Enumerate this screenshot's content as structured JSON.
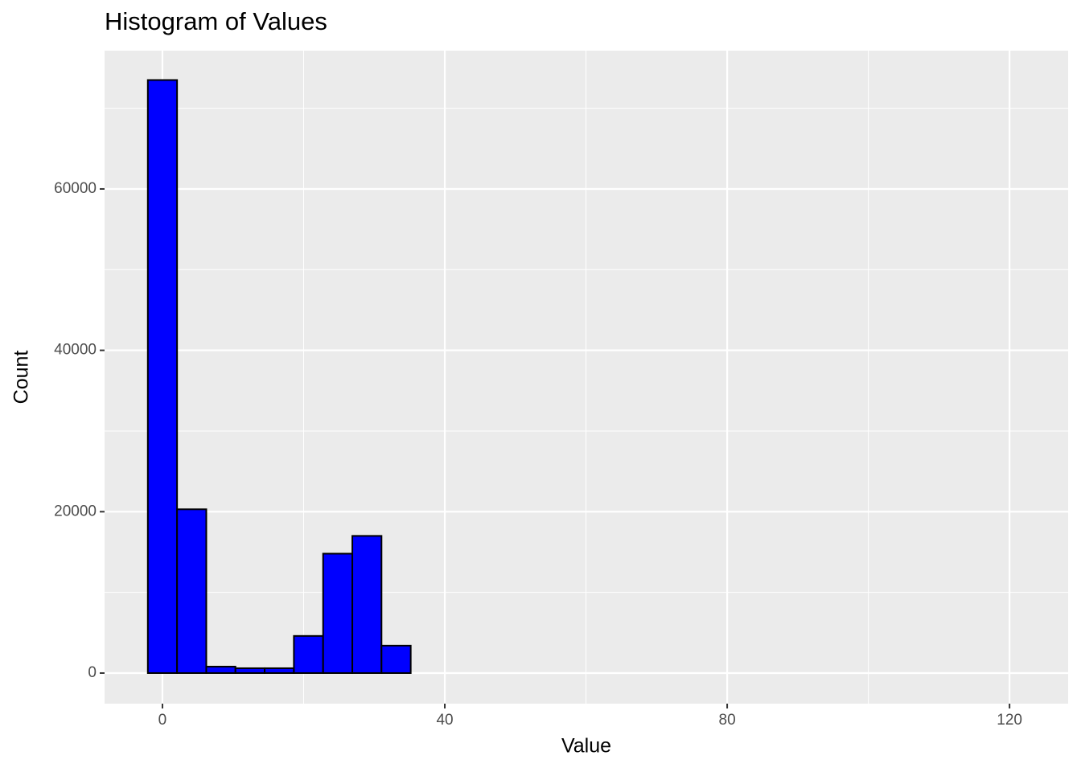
{
  "chart_data": {
    "type": "histogram",
    "title": "Histogram of Values",
    "x_label": "Value",
    "y_label": "Count",
    "bins": [
      -2.07,
      2.07,
      6.21,
      10.34,
      14.48,
      18.62,
      22.76,
      26.9,
      31.03,
      35.17,
      39.31,
      43.45,
      47.59,
      51.72,
      55.86,
      60.0,
      64.14,
      68.28,
      72.41,
      76.55,
      80.69,
      84.83,
      88.97,
      93.1,
      97.24,
      101.38,
      105.52,
      109.66,
      113.79,
      117.93,
      122.07
    ],
    "counts": [
      73500,
      20300,
      800,
      600,
      600,
      4600,
      14800,
      17000,
      3400,
      0,
      0,
      0,
      0,
      0,
      0,
      0,
      0,
      0,
      0,
      0,
      0,
      0,
      0,
      0,
      0,
      0,
      0,
      0,
      0,
      0
    ],
    "color": "#0000ff",
    "edge_color": "#000000",
    "xlim": [
      -8.2,
      128.3
    ],
    "xticks": [
      0,
      40,
      80,
      120
    ],
    "x_minor_ticks": [
      20,
      60,
      100
    ],
    "ylim": [
      -3790,
      77140
    ],
    "yticks": [
      0,
      20000,
      40000,
      60000
    ],
    "y_minor_ticks": [
      10000,
      30000,
      50000,
      70000
    ],
    "grid": true
  }
}
